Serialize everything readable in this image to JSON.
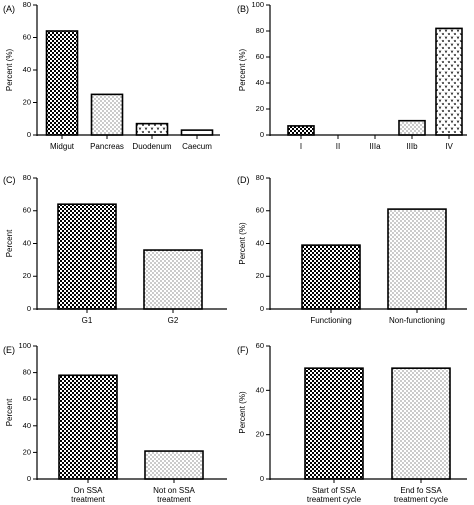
{
  "chart_data": [
    {
      "panel_label": "(A)",
      "type": "bar",
      "ylabel": "Percent (%)",
      "ylim": [
        0,
        80
      ],
      "yticks": [
        0,
        20,
        40,
        60,
        80
      ],
      "categories": [
        [
          "Midgut"
        ],
        [
          "Pancreas"
        ],
        [
          "Duodenum"
        ],
        [
          "Caecum"
        ]
      ],
      "values": [
        64,
        25,
        7,
        3
      ],
      "patterns": [
        "checker",
        "dots",
        "chevron",
        "plain"
      ]
    },
    {
      "panel_label": "(B)",
      "type": "bar",
      "ylabel": "Percent (%)",
      "ylim": [
        0,
        100
      ],
      "yticks": [
        0,
        20,
        40,
        60,
        80,
        100
      ],
      "categories": [
        [
          "I"
        ],
        [
          "II"
        ],
        [
          "IIIa"
        ],
        [
          "IIIb"
        ],
        [
          "IV"
        ]
      ],
      "values": [
        7,
        0,
        0,
        11,
        82
      ],
      "patterns": [
        "checker",
        "plain",
        "plain",
        "dots",
        "chevron"
      ]
    },
    {
      "panel_label": "(C)",
      "type": "bar",
      "ylabel": "Percent",
      "ylim": [
        0,
        80
      ],
      "yticks": [
        0,
        20,
        40,
        60,
        80
      ],
      "categories": [
        [
          "G1"
        ],
        [
          "G2"
        ]
      ],
      "values": [
        64,
        36
      ],
      "patterns": [
        "checker",
        "dots"
      ]
    },
    {
      "panel_label": "(D)",
      "type": "bar",
      "ylabel": "Percent (%)",
      "ylim": [
        0,
        80
      ],
      "yticks": [
        0,
        20,
        40,
        60,
        80
      ],
      "categories": [
        [
          "Functioning"
        ],
        [
          "Non-functioning"
        ]
      ],
      "values": [
        39,
        61
      ],
      "patterns": [
        "checker",
        "dots"
      ]
    },
    {
      "panel_label": "(E)",
      "type": "bar",
      "ylabel": "Percent",
      "ylim": [
        0,
        100
      ],
      "yticks": [
        0,
        20,
        40,
        60,
        80,
        100
      ],
      "categories": [
        [
          "On SSA",
          "treatment"
        ],
        [
          "Not on SSA",
          "treatment"
        ]
      ],
      "values": [
        78,
        21
      ],
      "patterns": [
        "checker",
        "dots"
      ]
    },
    {
      "panel_label": "(F)",
      "type": "bar",
      "ylabel": "Percent (%)",
      "ylim": [
        0,
        60
      ],
      "yticks": [
        0,
        20,
        40,
        60
      ],
      "categories": [
        [
          "Start of SSA",
          "treatment cycle"
        ],
        [
          "End fo SSA",
          "treatment cycle"
        ]
      ],
      "values": [
        50,
        50
      ],
      "patterns": [
        "checker",
        "dots"
      ]
    }
  ]
}
